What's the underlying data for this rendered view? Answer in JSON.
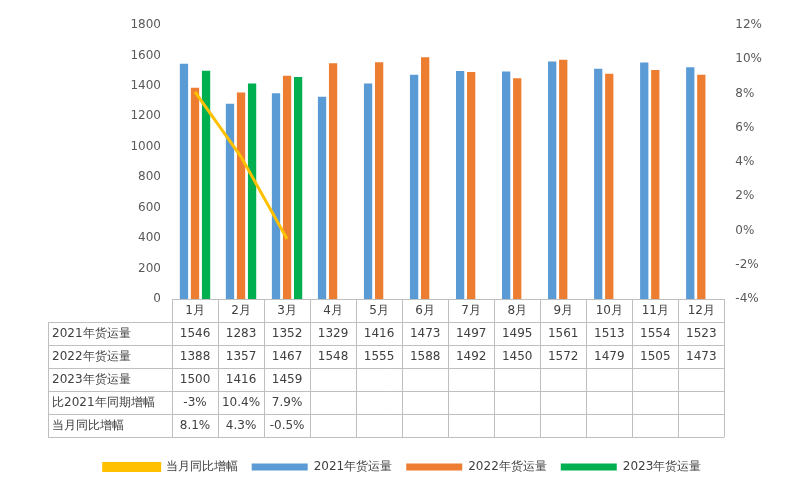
{
  "chart_data": {
    "type": "bar",
    "categories": [
      "1月",
      "2月",
      "3月",
      "4月",
      "5月",
      "6月",
      "7月",
      "8月",
      "9月",
      "10月",
      "11月",
      "12月"
    ],
    "series": [
      {
        "name": "2021年货运量",
        "color": "#5b9bd5",
        "values": [
          1546,
          1283,
          1352,
          1329,
          1416,
          1473,
          1497,
          1495,
          1561,
          1513,
          1554,
          1523
        ]
      },
      {
        "name": "2022年货运量",
        "color": "#ed7d31",
        "values": [
          1388,
          1357,
          1467,
          1548,
          1555,
          1588,
          1492,
          1450,
          1572,
          1479,
          1505,
          1473
        ]
      },
      {
        "name": "2023年货运量",
        "color": "#00b050",
        "values": [
          1500,
          1416,
          1459,
          null,
          null,
          null,
          null,
          null,
          null,
          null,
          null,
          null
        ]
      },
      {
        "name": "当月同比增幅",
        "type": "line",
        "axis": "y2",
        "color": "#ffc000",
        "values": [
          8.1,
          4.3,
          -0.5,
          null,
          null,
          null,
          null,
          null,
          null,
          null,
          null,
          null
        ],
        "value_labels": [
          "8.1%",
          "4.3%",
          "-0.5%",
          null,
          null,
          null,
          null,
          null,
          null,
          null,
          null,
          null
        ]
      }
    ],
    "table_rows": [
      {
        "name": "比2021年同期增幅",
        "values": [
          -3,
          10.4,
          7.9,
          null,
          null,
          null,
          null,
          null,
          null,
          null,
          null,
          null
        ],
        "value_labels": [
          "-3%",
          "10.4%",
          "7.9%",
          null,
          null,
          null,
          null,
          null,
          null,
          null,
          null,
          null
        ]
      }
    ],
    "ylim": [
      0,
      1800
    ],
    "yticks": [
      0,
      200,
      400,
      600,
      800,
      1000,
      1200,
      1400,
      1600,
      1800
    ],
    "y2lim": [
      -4,
      12
    ],
    "y2ticks": [
      {
        "value": -4,
        "label": "-4%"
      },
      {
        "value": -2,
        "label": "-2%"
      },
      {
        "value": 0,
        "label": "0%"
      },
      {
        "value": 2,
        "label": "2%"
      },
      {
        "value": 4,
        "label": "4%"
      },
      {
        "value": 6,
        "label": "6%"
      },
      {
        "value": 8,
        "label": "8%"
      },
      {
        "value": 10,
        "label": "10%"
      },
      {
        "value": 12,
        "label": "12%"
      }
    ],
    "grid": false,
    "legend": "bottom"
  }
}
